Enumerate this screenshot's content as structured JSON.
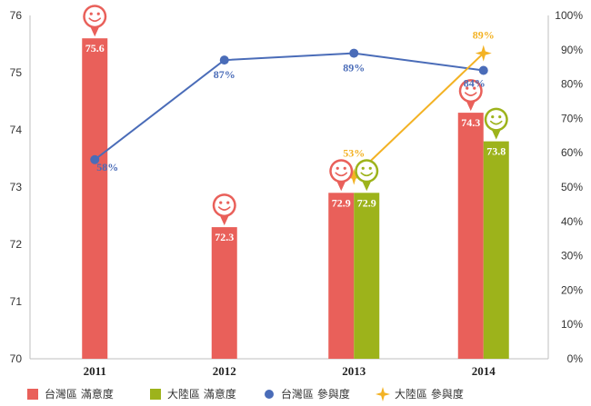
{
  "chart_data": {
    "type": "bar",
    "categories": [
      "2011",
      "2012",
      "2013",
      "2014"
    ],
    "ylim": [
      70,
      76
    ],
    "y_ticks": [
      "70",
      "71",
      "72",
      "73",
      "74",
      "75",
      "76"
    ],
    "y2lim": [
      0,
      100
    ],
    "y2_ticks": [
      "0%",
      "10%",
      "20%",
      "30%",
      "40%",
      "50%",
      "60%",
      "70%",
      "80%",
      "90%",
      "100%"
    ],
    "grid": false,
    "legend_position": "bottom",
    "series": [
      {
        "name": "台灣區 滿意度",
        "kind": "bar",
        "axis": "left",
        "color": "#E9605A",
        "values": [
          75.6,
          72.3,
          72.9,
          74.3
        ],
        "labels": [
          "75.6",
          "72.3",
          "72.9",
          "74.3"
        ]
      },
      {
        "name": "大陸區 滿意度",
        "kind": "bar",
        "axis": "left",
        "color": "#9DB31B",
        "values": [
          null,
          null,
          72.9,
          73.8
        ],
        "labels": [
          "",
          "",
          "72.9",
          "73.8"
        ]
      },
      {
        "name": "台灣區 參與度",
        "kind": "line",
        "axis": "right",
        "color": "#4A6CB8",
        "marker": "circle",
        "values": [
          58,
          87,
          89,
          84
        ],
        "labels": [
          "58%",
          "87%",
          "89%",
          "84%"
        ]
      },
      {
        "name": "大陸區 參與度",
        "kind": "line",
        "axis": "right",
        "color": "#F3B224",
        "marker": "star",
        "values": [
          null,
          null,
          53,
          89
        ],
        "labels": [
          "",
          "",
          "53%",
          "89%"
        ]
      }
    ],
    "icons": [
      "smiley-icon"
    ]
  }
}
